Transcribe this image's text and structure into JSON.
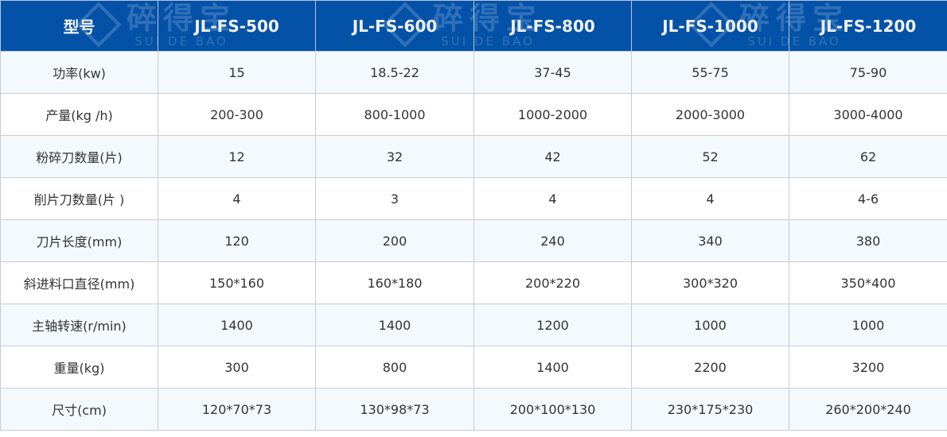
{
  "header": [
    "型号",
    "JL-FS-500",
    "JL-FS-600",
    "JL-FS-800",
    "JL-FS-1000",
    "JL-FS-1200"
  ],
  "rows": [
    [
      "功率(kw)",
      "15",
      "18.5-22",
      "37-45",
      "55-75",
      "75-90"
    ],
    [
      "产量(kg /h)",
      "200-300",
      "800-1000",
      "1000-2000",
      "2000-3000",
      "3000-4000"
    ],
    [
      "粉碎刀数量(片)",
      "12",
      "32",
      "42",
      "52",
      "62"
    ],
    [
      "削片刀数量(片 )",
      "4",
      "3",
      "4",
      "4",
      "4-6"
    ],
    [
      "刀片长度(mm)",
      "120",
      "200",
      "240",
      "340",
      "380"
    ],
    [
      "斜进料口直径(mm)",
      "150*160",
      "160*180",
      "200*220",
      "300*320",
      "350*400"
    ],
    [
      "主轴转速(r/min)",
      "1400",
      "1400",
      "1200",
      "1000",
      "1000"
    ],
    [
      "重量(kg)",
      "300",
      "800",
      "1400",
      "2200",
      "3200"
    ],
    [
      "尺寸(cm)",
      "120*70*73",
      "130*98*73",
      "200*100*130",
      "230*175*230",
      "260*200*240"
    ]
  ],
  "watermark": {
    "cn": "碎得宝",
    "en": "SUI DE BAO"
  },
  "colors": {
    "header_bg": "#0352a8",
    "row_alt": "#f4f9fe",
    "border": "#c9ccd2"
  }
}
